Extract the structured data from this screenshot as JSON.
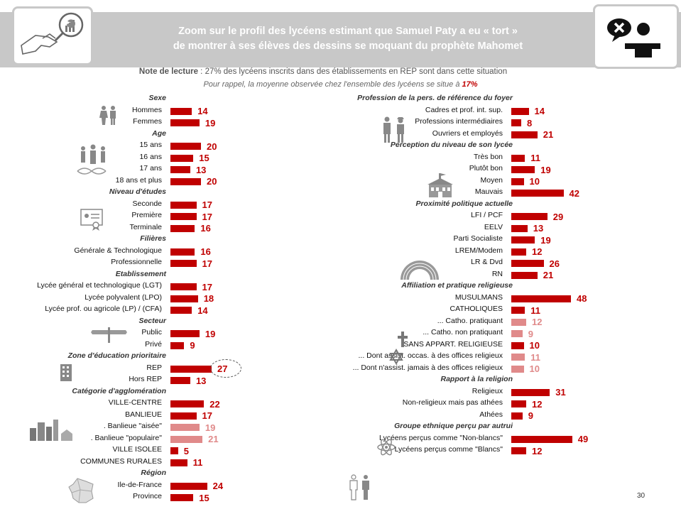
{
  "header": {
    "title_line1": "Zoom sur le profil des lycéens estimant que Samuel Paty a eu « tort »",
    "title_line2": "de montrer à ses élèves des dessins se moquant du prophète Mahomet"
  },
  "note": {
    "label": "Note de lecture",
    "text": " :  27% des lycéens inscrits dans des établissements en REP sont dans cette situation",
    "reminder": "Pour rappel, la moyenne observée chez l'ensemble des lycéens se situe à ",
    "average": "17%"
  },
  "colors": {
    "primary": "#c00000",
    "secondary": "#e08a8a",
    "banner": "#c8c8c8"
  },
  "page_number": "30",
  "chart_data": {
    "type": "bar",
    "orientation": "horizontal",
    "unit": "%",
    "average": 17,
    "highlighted": "REP",
    "groups": [
      {
        "title": "Sexe",
        "column": "left",
        "items": [
          {
            "label": "Hommes",
            "value": 14
          },
          {
            "label": "Femmes",
            "value": 19
          }
        ]
      },
      {
        "title": "Age",
        "column": "left",
        "items": [
          {
            "label": "15 ans",
            "value": 20
          },
          {
            "label": "16 ans",
            "value": 15
          },
          {
            "label": "17 ans",
            "value": 13
          },
          {
            "label": "18 ans et plus",
            "value": 20
          }
        ]
      },
      {
        "title": "Niveau d'études",
        "column": "left",
        "items": [
          {
            "label": "Seconde",
            "value": 17
          },
          {
            "label": "Première",
            "value": 17
          },
          {
            "label": "Terminale",
            "value": 16
          }
        ]
      },
      {
        "title": "Filières",
        "column": "left",
        "items": [
          {
            "label": "Générale & Technologique",
            "value": 16
          },
          {
            "label": "Professionnelle",
            "value": 17
          }
        ]
      },
      {
        "title": "Etablissement",
        "column": "left",
        "items": [
          {
            "label": "Lycée général et technologique (LGT)",
            "value": 17
          },
          {
            "label": "Lycée polyvalent (LPO)",
            "value": 18
          },
          {
            "label": "Lycée prof. ou agricole (LP) / (CFA)",
            "value": 14
          }
        ]
      },
      {
        "title": "Secteur",
        "column": "left",
        "items": [
          {
            "label": "Public",
            "value": 19
          },
          {
            "label": "Privé",
            "value": 9
          }
        ]
      },
      {
        "title": "Zone d'éducation prioritaire",
        "column": "left",
        "items": [
          {
            "label": "REP",
            "value": 27
          },
          {
            "label": "Hors REP",
            "value": 13
          }
        ]
      },
      {
        "title": "Catégorie d'agglomération",
        "column": "left",
        "items": [
          {
            "label": "VILLE-CENTRE",
            "value": 22
          },
          {
            "label": "BANLIEUE",
            "value": 17
          },
          {
            "label": ". Banlieue \"aisée\"",
            "value": 19,
            "sub": true
          },
          {
            "label": ". Banlieue \"populaire\"",
            "value": 21,
            "sub": true
          },
          {
            "label": "VILLE ISOLEE",
            "value": 5
          },
          {
            "label": "COMMUNES RURALES",
            "value": 11
          }
        ]
      },
      {
        "title": "Région",
        "column": "left",
        "items": [
          {
            "label": "Ile-de-France",
            "value": 24
          },
          {
            "label": "Province",
            "value": 15
          }
        ]
      },
      {
        "title": "Profession de la pers. de référence du foyer",
        "column": "right",
        "items": [
          {
            "label": "Cadres et prof. int. sup.",
            "value": 14
          },
          {
            "label": "Professions intermédiaires",
            "value": 8
          },
          {
            "label": "Ouvriers et employés",
            "value": 21
          }
        ]
      },
      {
        "title": "Perception du niveau de son lycée",
        "column": "right",
        "items": [
          {
            "label": "Très bon",
            "value": 11
          },
          {
            "label": "Plutôt bon",
            "value": 19
          },
          {
            "label": "Moyen",
            "value": 10
          },
          {
            "label": "Mauvais",
            "value": 42
          }
        ]
      },
      {
        "title": "Proximité politique actuelle",
        "column": "right",
        "items": [
          {
            "label": "LFI / PCF",
            "value": 29
          },
          {
            "label": "EELV",
            "value": 13
          },
          {
            "label": "Parti Socialiste",
            "value": 19
          },
          {
            "label": "LREM/Modem",
            "value": 12
          },
          {
            "label": "LR & Dvd",
            "value": 26
          },
          {
            "label": "RN",
            "value": 21
          }
        ]
      },
      {
        "title": "Affiliation et pratique religieuse",
        "column": "right",
        "items": [
          {
            "label": "MUSULMANS",
            "value": 48
          },
          {
            "label": "CATHOLIQUES",
            "value": 11
          },
          {
            "label": "... Catho. pratiquant",
            "value": 12,
            "sub": true
          },
          {
            "label": "... Catho. non pratiquant",
            "value": 9,
            "sub": true
          },
          {
            "label": "SANS APPART. RELIGIEUSE",
            "value": 10
          },
          {
            "label": "... Dont assist. occas. à des offices religieux",
            "value": 11,
            "sub": true
          },
          {
            "label": "... Dont n'assist. jamais à des offices religieux",
            "value": 10,
            "sub": true
          }
        ]
      },
      {
        "title": "Rapport à la religion",
        "column": "right",
        "items": [
          {
            "label": "Religieux",
            "value": 31
          },
          {
            "label": "Non-religieux mais pas athées",
            "value": 12
          },
          {
            "label": "Athées",
            "value": 9
          }
        ]
      },
      {
        "title": "Groupe ethnique perçu par autrui",
        "column": "right",
        "items": [
          {
            "label": "Lycéens perçus comme \"Non-blancs\"",
            "value": 49
          },
          {
            "label": "Lycéens perçus comme \"Blancs\"",
            "value": 12
          }
        ]
      }
    ]
  }
}
